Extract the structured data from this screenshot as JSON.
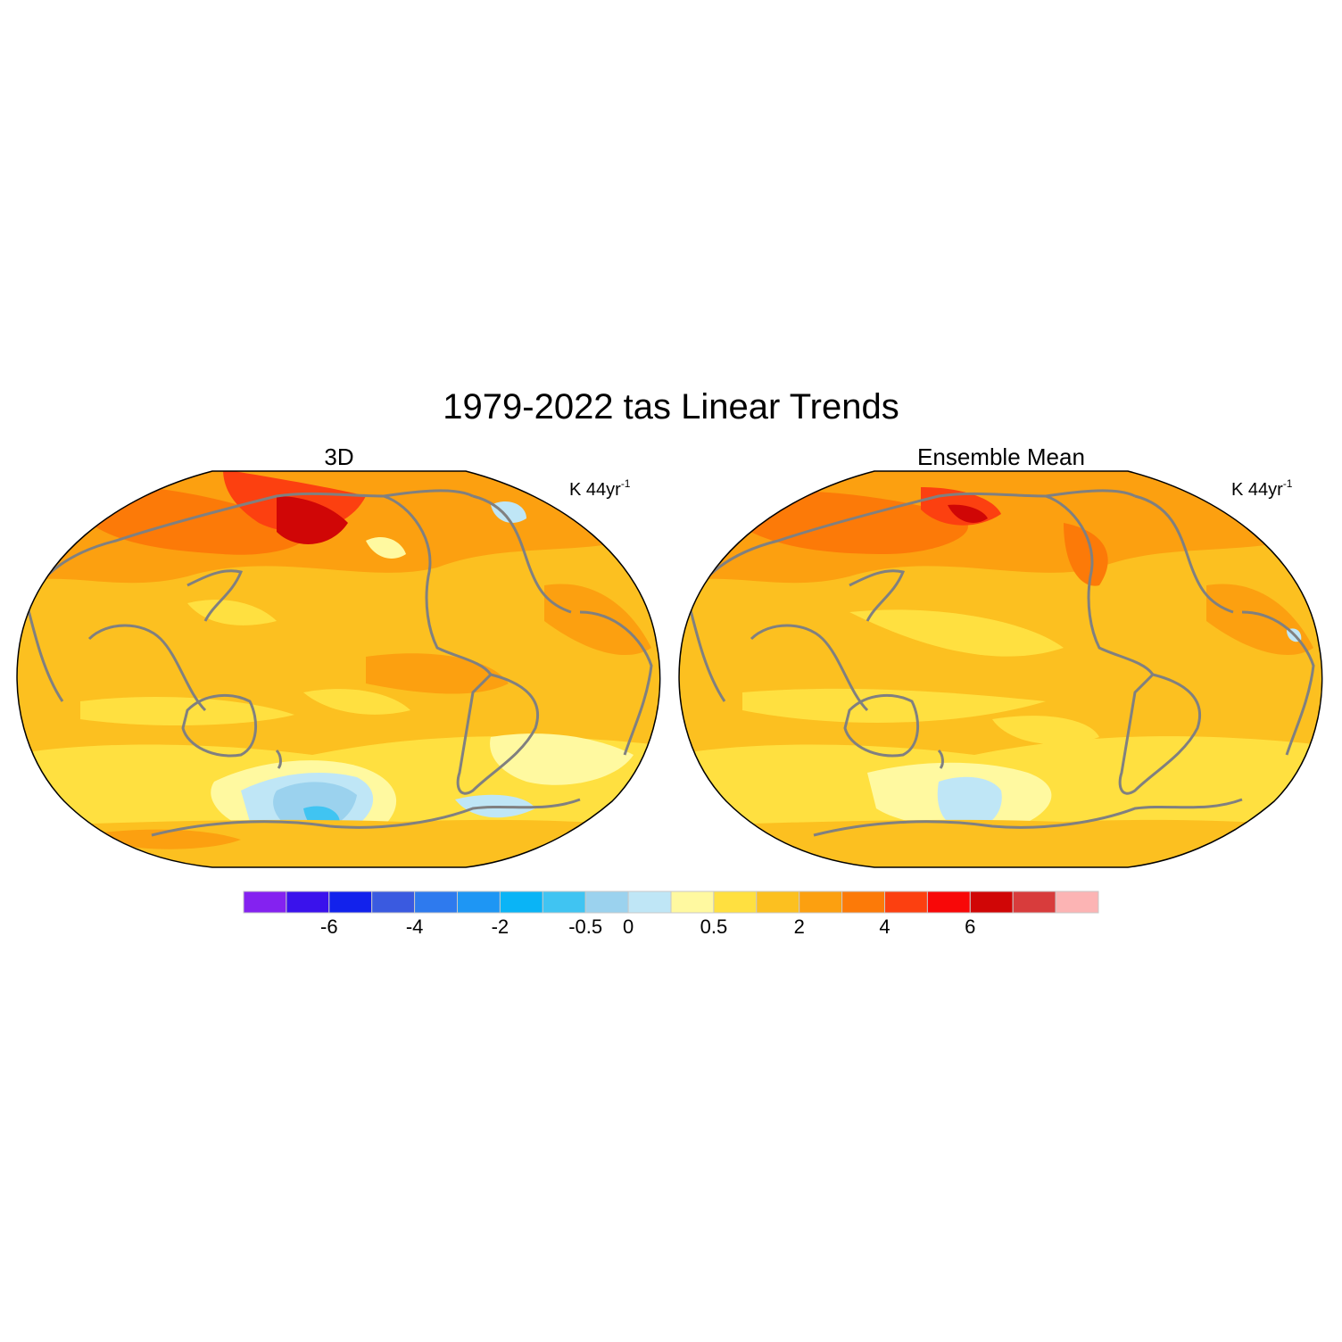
{
  "figure": {
    "title": "1979-2022 tas Linear Trends"
  },
  "panels": [
    {
      "title": "3D",
      "units_base": "K 44yr",
      "units_exp": "-1"
    },
    {
      "title": "Ensemble Mean",
      "units_base": "K 44yr",
      "units_exp": "-1"
    }
  ],
  "colorbar": {
    "colors": [
      "#8422f0",
      "#3a12ec",
      "#1222ec",
      "#3a5ae0",
      "#2e7aee",
      "#1e96f4",
      "#0ab4f6",
      "#40c4f2",
      "#9bd2ee",
      "#bfe6f6",
      "#fff9a0",
      "#ffe040",
      "#fcc020",
      "#fca010",
      "#fc7a08",
      "#fc4010",
      "#f80808",
      "#d00606",
      "#d83c3c",
      "#fcb4b4"
    ],
    "labels": [
      "-6",
      "-4",
      "-2",
      "-0.5",
      "0",
      "0.5",
      "2",
      "4",
      "6"
    ],
    "label_after_box": [
      2,
      4,
      6,
      8,
      9,
      11,
      13,
      15,
      17
    ]
  },
  "map_colors": {
    "ocean_base": "#fcc020",
    "land_outline": "#808080",
    "map_border": "#000000"
  }
}
